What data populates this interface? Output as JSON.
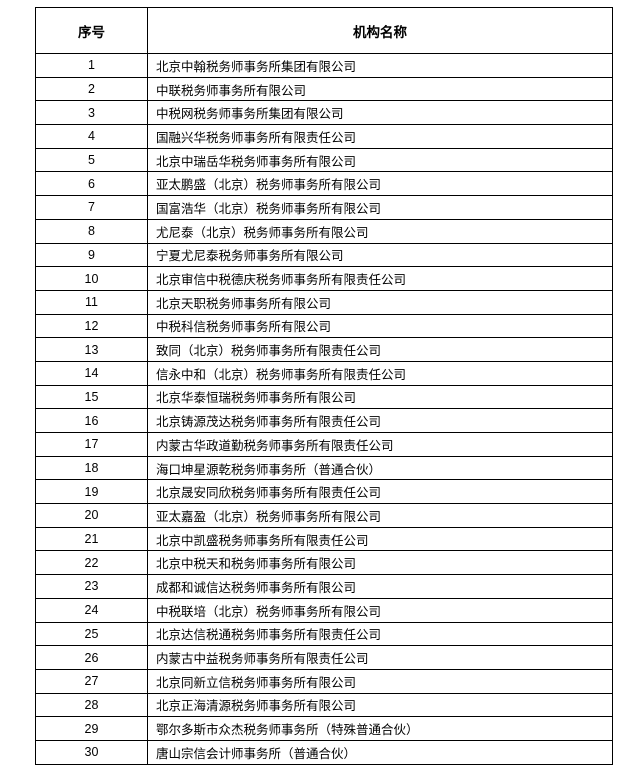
{
  "table": {
    "headers": [
      "序号",
      "机构名称"
    ],
    "rows": [
      {
        "no": "1",
        "name": "北京中翰税务师事务所集团有限公司"
      },
      {
        "no": "2",
        "name": "中联税务师事务所有限公司"
      },
      {
        "no": "3",
        "name": "中税网税务师事务所集团有限公司"
      },
      {
        "no": "4",
        "name": "国融兴华税务师事务所有限责任公司"
      },
      {
        "no": "5",
        "name": "北京中瑞岳华税务师事务所有限公司"
      },
      {
        "no": "6",
        "name": "亚太鹏盛（北京）税务师事务所有限公司"
      },
      {
        "no": "7",
        "name": "国富浩华（北京）税务师事务所有限公司"
      },
      {
        "no": "8",
        "name": "尤尼泰（北京）税务师事务所有限公司"
      },
      {
        "no": "9",
        "name": "宁夏尤尼泰税务师事务所有限公司"
      },
      {
        "no": "10",
        "name": "北京审信中税德庆税务师事务所有限责任公司"
      },
      {
        "no": "11",
        "name": "北京天职税务师事务所有限公司"
      },
      {
        "no": "12",
        "name": "中税科信税务师事务所有限公司"
      },
      {
        "no": "13",
        "name": "致同（北京）税务师事务所有限责任公司"
      },
      {
        "no": "14",
        "name": "信永中和（北京）税务师事务所有限责任公司"
      },
      {
        "no": "15",
        "name": "北京华泰恒瑞税务师事务所有限公司"
      },
      {
        "no": "16",
        "name": "北京铸源茂达税务师事务所有限责任公司"
      },
      {
        "no": "17",
        "name": "内蒙古华政道勤税务师事务所有限责任公司"
      },
      {
        "no": "18",
        "name": "海口坤星源乾税务师事务所（普通合伙）"
      },
      {
        "no": "19",
        "name": "北京晟安同欣税务师事务所有限责任公司"
      },
      {
        "no": "20",
        "name": "亚太嘉盈（北京）税务师事务所有限公司"
      },
      {
        "no": "21",
        "name": "北京中凯盛税务师事务所有限责任公司"
      },
      {
        "no": "22",
        "name": "北京中税天和税务师事务所有限公司"
      },
      {
        "no": "23",
        "name": "成都和诚信达税务师事务所有限公司"
      },
      {
        "no": "24",
        "name": "中税联培（北京）税务师事务所有限公司"
      },
      {
        "no": "25",
        "name": "北京达信税通税务师事务所有限责任公司"
      },
      {
        "no": "26",
        "name": "内蒙古中益税务师事务所有限责任公司"
      },
      {
        "no": "27",
        "name": "北京同新立信税务师事务所有限公司"
      },
      {
        "no": "28",
        "name": "北京正海清源税务师事务所有限公司"
      },
      {
        "no": "29",
        "name": "鄂尔多斯市众杰税务师事务所（特殊普通合伙）"
      },
      {
        "no": "30",
        "name": "唐山宗信会计师事务所（普通合伙）"
      }
    ]
  }
}
